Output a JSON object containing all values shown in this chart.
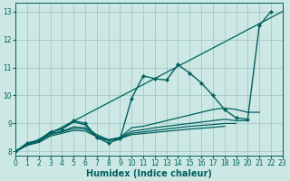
{
  "xlabel": "Humidex (Indice chaleur)",
  "ylabel": "",
  "bg_color": "#cce8e4",
  "grid_color": "#aaccc8",
  "line_color": "#006060",
  "xlim": [
    0,
    23
  ],
  "ylim": [
    7.85,
    13.3
  ],
  "xticks": [
    0,
    1,
    2,
    3,
    4,
    5,
    6,
    7,
    8,
    9,
    10,
    11,
    12,
    13,
    14,
    15,
    16,
    17,
    18,
    19,
    20,
    21,
    22,
    23
  ],
  "yticks": [
    8,
    9,
    10,
    11,
    12,
    13
  ],
  "tick_fontsize": 5.5,
  "xlabel_fontsize": 7,
  "series": [
    {
      "x": [
        0,
        1,
        2,
        3,
        4,
        5,
        6,
        7,
        8,
        9,
        10,
        11,
        12,
        13,
        14,
        15,
        16,
        17,
        18,
        19,
        20,
        21,
        22
      ],
      "y": [
        8.0,
        8.3,
        8.4,
        8.7,
        8.8,
        9.1,
        9.0,
        8.5,
        8.3,
        8.45,
        9.9,
        10.7,
        10.6,
        10.55,
        11.1,
        10.8,
        10.45,
        10.0,
        9.5,
        9.2,
        9.15,
        12.5,
        13.0
      ],
      "marker": true,
      "lw": 1.0
    },
    {
      "x": [
        0,
        1,
        2,
        3,
        4,
        5,
        6,
        7,
        8,
        9,
        10,
        11,
        12,
        13,
        14,
        15,
        16,
        17,
        18,
        19,
        20,
        21
      ],
      "y": [
        8.0,
        8.3,
        8.4,
        8.7,
        8.8,
        9.05,
        8.95,
        8.5,
        8.4,
        8.5,
        8.85,
        8.9,
        9.0,
        9.1,
        9.2,
        9.3,
        9.4,
        9.5,
        9.55,
        9.5,
        9.4,
        9.4
      ],
      "marker": false,
      "lw": 0.9
    },
    {
      "x": [
        0,
        1,
        2,
        3,
        4,
        5,
        6,
        7,
        8,
        9,
        10,
        11,
        12,
        13,
        14,
        15,
        16,
        17,
        18,
        19,
        20
      ],
      "y": [
        8.0,
        8.28,
        8.38,
        8.65,
        8.72,
        8.88,
        8.85,
        8.6,
        8.42,
        8.5,
        8.72,
        8.78,
        8.85,
        8.9,
        8.95,
        9.0,
        9.05,
        9.1,
        9.15,
        9.1,
        9.1
      ],
      "marker": false,
      "lw": 0.9
    },
    {
      "x": [
        0,
        1,
        2,
        3,
        4,
        5,
        6,
        7,
        8,
        9,
        10,
        11,
        12,
        13,
        14,
        15,
        16,
        17,
        18,
        19
      ],
      "y": [
        8.0,
        8.25,
        8.35,
        8.6,
        8.7,
        8.82,
        8.8,
        8.55,
        8.4,
        8.48,
        8.65,
        8.7,
        8.75,
        8.8,
        8.85,
        8.9,
        8.93,
        8.96,
        9.0,
        9.0
      ],
      "marker": false,
      "lw": 0.9
    },
    {
      "x": [
        0,
        1,
        2,
        3,
        4,
        5,
        6,
        7,
        8,
        9,
        10,
        11,
        12,
        13,
        14,
        15,
        16,
        17,
        18
      ],
      "y": [
        8.0,
        8.22,
        8.32,
        8.55,
        8.65,
        8.75,
        8.73,
        8.52,
        8.38,
        8.46,
        8.6,
        8.64,
        8.68,
        8.72,
        8.76,
        8.8,
        8.83,
        8.86,
        8.9
      ],
      "marker": false,
      "lw": 0.9
    }
  ],
  "diag_line": {
    "x": [
      0,
      23
    ],
    "y": [
      8.0,
      13.0
    ]
  }
}
